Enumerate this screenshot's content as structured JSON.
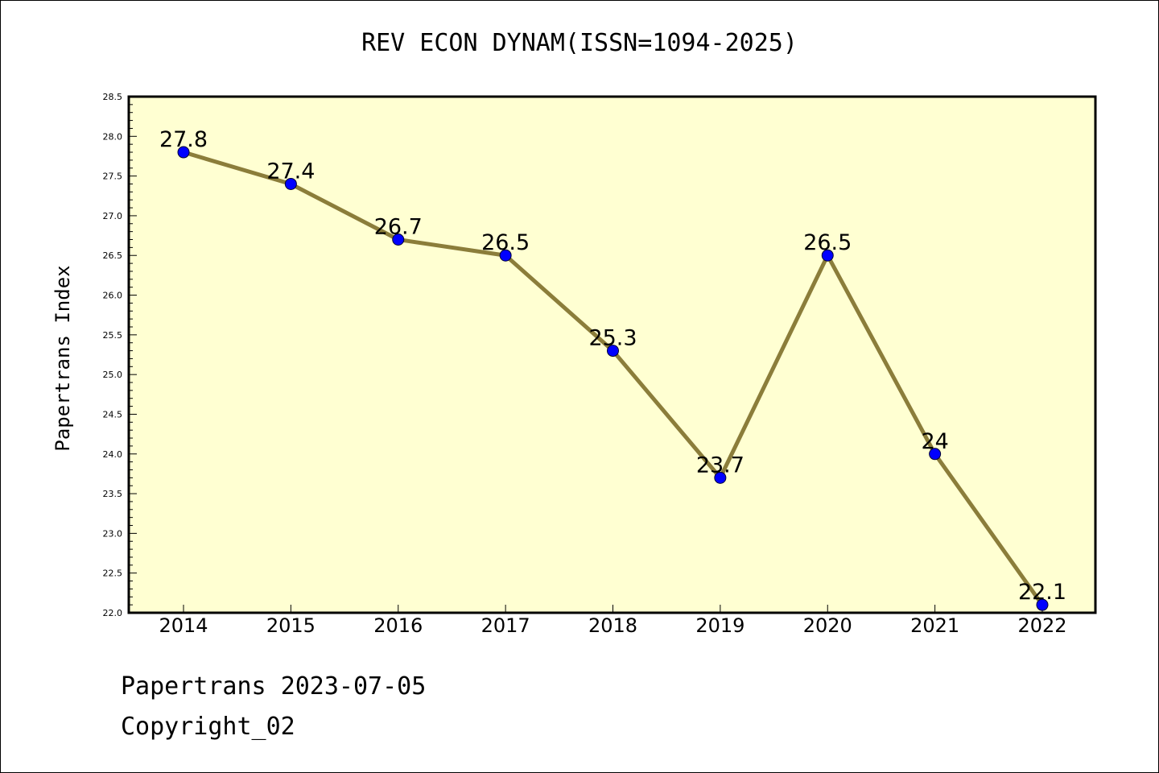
{
  "chart_data": {
    "type": "line",
    "title": "REV ECON DYNAM(ISSN=1094-2025)",
    "xlabel": "",
    "ylabel": "Papertrans Index",
    "categories": [
      "2014",
      "2015",
      "2016",
      "2017",
      "2018",
      "2019",
      "2020",
      "2021",
      "2022"
    ],
    "series": [
      {
        "values": [
          27.8,
          27.4,
          26.7,
          26.5,
          25.3,
          23.7,
          26.5,
          24.0,
          22.1
        ],
        "labels": [
          "27.8",
          "27.4",
          "26.7",
          "26.5",
          "25.3",
          "23.7",
          "26.5",
          "24",
          "22.1"
        ],
        "line_color": "#8b7d3a",
        "marker_color": "#0000ff"
      }
    ],
    "ylim": [
      22.0,
      28.5
    ],
    "yticks": [
      "22.0",
      "22.5",
      "23.0",
      "23.5",
      "24.0",
      "24.5",
      "25.0",
      "25.5",
      "26.0",
      "26.5",
      "27.0",
      "27.5",
      "28.0",
      "28.5"
    ],
    "grid": false,
    "plot_background": "#ffffd2"
  },
  "footer": {
    "brand": "Papertrans",
    "date": "2023-07-05",
    "copyright": "Copyright_02"
  }
}
